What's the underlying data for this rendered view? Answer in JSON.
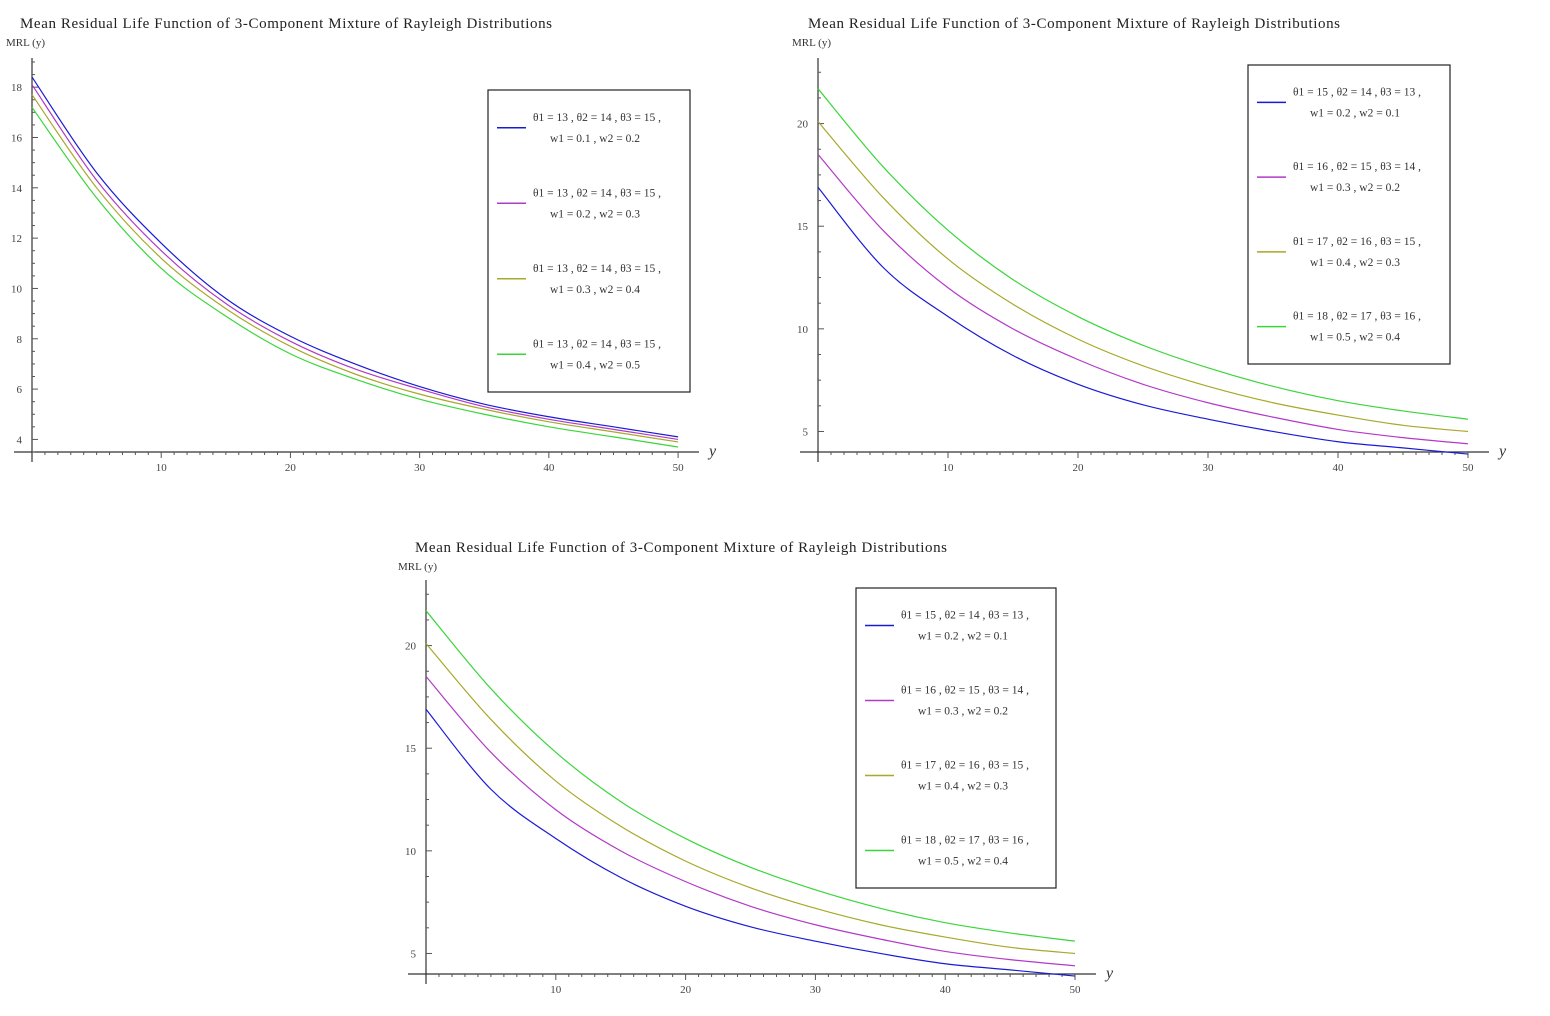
{
  "chart_data": [
    {
      "type": "line",
      "title": "Mean Residual Life Function of 3-Component Mixture of Rayleigh Distributions",
      "ylabel": "MRL (y)",
      "xlabel": "y",
      "xlim": [
        0,
        51
      ],
      "ylim": [
        3.5,
        19
      ],
      "xticks": [
        10,
        20,
        30,
        40,
        50
      ],
      "yticks": [
        4,
        6,
        8,
        10,
        12,
        14,
        16,
        18
      ],
      "legend_position": "top-right",
      "x": [
        0,
        5,
        10,
        15,
        20,
        25,
        30,
        35,
        40,
        45,
        50
      ],
      "series": [
        {
          "name_line1": "θ1 = 13 , θ2 = 14 , θ3 = 15 ,",
          "name_line2": "w1 = 0.1 , w2 = 0.2",
          "color": "#1a1ad6",
          "values": [
            18.4,
            14.6,
            11.8,
            9.6,
            8.1,
            7.0,
            6.1,
            5.4,
            4.9,
            4.5,
            4.1
          ]
        },
        {
          "name_line1": "θ1 = 13 , θ2 = 14 , θ3 = 15 ,",
          "name_line2": "w1 = 0.2 , w2 = 0.3",
          "color": "#b23ac8",
          "values": [
            18.1,
            14.3,
            11.5,
            9.4,
            7.9,
            6.8,
            6.0,
            5.3,
            4.8,
            4.4,
            4.0
          ]
        },
        {
          "name_line1": "θ1 = 13 , θ2 = 14 , θ3 = 15 ,",
          "name_line2": "w1 = 0.3 , w2 = 0.4",
          "color": "#a8a82a",
          "values": [
            17.7,
            14.0,
            11.2,
            9.2,
            7.7,
            6.6,
            5.8,
            5.2,
            4.7,
            4.3,
            3.9
          ]
        },
        {
          "name_line1": "θ1 = 13 , θ2 = 14 , θ3 = 15 ,",
          "name_line2": "w1 = 0.4 , w2 = 0.5",
          "color": "#3ad63a",
          "values": [
            17.2,
            13.6,
            10.8,
            8.9,
            7.4,
            6.4,
            5.6,
            5.0,
            4.5,
            4.1,
            3.7
          ]
        }
      ]
    },
    {
      "type": "line",
      "title": "Mean Residual Life Function of 3-Component Mixture of Rayleigh Distributions",
      "ylabel": "MRL (y)",
      "xlabel": "y",
      "xlim": [
        0,
        51
      ],
      "ylim": [
        4,
        23
      ],
      "xticks": [
        10,
        20,
        30,
        40,
        50
      ],
      "yticks": [
        5,
        10,
        15,
        20
      ],
      "legend_position": "top-right",
      "x": [
        0,
        5,
        10,
        15,
        20,
        25,
        30,
        35,
        40,
        45,
        50
      ],
      "series": [
        {
          "name_line1": "θ1 = 15 , θ2 = 14 , θ3 = 13 ,",
          "name_line2": "w1 = 0.2 , w2 = 0.1",
          "color": "#1a1ad6",
          "values": [
            16.9,
            13.0,
            10.6,
            8.7,
            7.3,
            6.3,
            5.6,
            5.0,
            4.5,
            4.2,
            3.9
          ]
        },
        {
          "name_line1": "θ1 = 16 , θ2 = 15 , θ3 = 14 ,",
          "name_line2": "w1 = 0.3 , w2 = 0.2",
          "color": "#b23ac8",
          "values": [
            18.5,
            14.8,
            12.0,
            10.0,
            8.5,
            7.3,
            6.4,
            5.7,
            5.1,
            4.7,
            4.4
          ]
        },
        {
          "name_line1": "θ1 = 17 , θ2 = 16 , θ3 = 15 ,",
          "name_line2": "w1 = 0.4 , w2 = 0.3",
          "color": "#a8a82a",
          "values": [
            20.1,
            16.4,
            13.4,
            11.2,
            9.5,
            8.2,
            7.2,
            6.4,
            5.8,
            5.3,
            5.0
          ]
        },
        {
          "name_line1": "θ1 = 18 , θ2 = 17 , θ3 = 16 ,",
          "name_line2": "w1 = 0.5 , w2 = 0.4",
          "color": "#3ad63a",
          "values": [
            21.7,
            17.9,
            14.8,
            12.4,
            10.6,
            9.2,
            8.1,
            7.2,
            6.5,
            6.0,
            5.6
          ]
        }
      ]
    },
    {
      "type": "line",
      "title": "Mean Residual Life Function of 3-Component Mixture of Rayleigh Distributions",
      "ylabel": "MRL (y)",
      "xlabel": "y",
      "xlim": [
        0,
        51
      ],
      "ylim": [
        4,
        23
      ],
      "xticks": [
        10,
        20,
        30,
        40,
        50
      ],
      "yticks": [
        5,
        10,
        15,
        20
      ],
      "legend_position": "top-right",
      "x": [
        0,
        5,
        10,
        15,
        20,
        25,
        30,
        35,
        40,
        45,
        50
      ],
      "series": [
        {
          "name_line1": "θ1 = 15 , θ2 = 14 , θ3 = 13 ,",
          "name_line2": "w1 = 0.2 , w2 = 0.1",
          "color": "#1a1ad6",
          "values": [
            16.9,
            13.0,
            10.6,
            8.7,
            7.3,
            6.3,
            5.6,
            5.0,
            4.5,
            4.2,
            3.9
          ]
        },
        {
          "name_line1": "θ1 = 16 , θ2 = 15 , θ3 = 14 ,",
          "name_line2": "w1 = 0.3 , w2 = 0.2",
          "color": "#b23ac8",
          "values": [
            18.5,
            14.8,
            12.0,
            10.0,
            8.5,
            7.3,
            6.4,
            5.7,
            5.1,
            4.7,
            4.4
          ]
        },
        {
          "name_line1": "θ1 = 17 , θ2 = 16 , θ3 = 15 ,",
          "name_line2": "w1 = 0.4 , w2 = 0.3",
          "color": "#a8a82a",
          "values": [
            20.1,
            16.4,
            13.4,
            11.2,
            9.5,
            8.2,
            7.2,
            6.4,
            5.8,
            5.3,
            5.0
          ]
        },
        {
          "name_line1": "θ1 = 18 , θ2 = 17 , θ3 = 16 ,",
          "name_line2": "w1 = 0.5 , w2 = 0.4",
          "color": "#3ad63a",
          "values": [
            21.7,
            17.9,
            14.8,
            12.4,
            10.6,
            9.2,
            8.1,
            7.2,
            6.5,
            6.0,
            5.6
          ]
        }
      ]
    }
  ]
}
